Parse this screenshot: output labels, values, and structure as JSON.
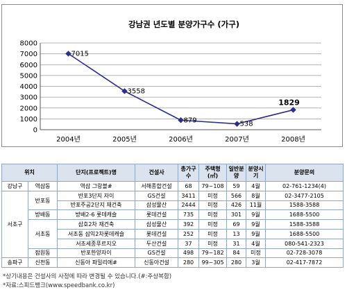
{
  "chart_data": {
    "type": "line",
    "title": "강남권 년도별 분양가구수 (가구)",
    "categories": [
      "2004년",
      "2005년",
      "2006년",
      "2007년",
      "2008년"
    ],
    "series": [
      {
        "values": [
          7015,
          3558,
          879,
          538,
          1829
        ],
        "data_labels": [
          "7015",
          "3558",
          "879",
          "538",
          "1829"
        ]
      }
    ],
    "yticks": [
      "0",
      "1000",
      "2000",
      "3000",
      "4000",
      "5000",
      "6000",
      "7000",
      "8000"
    ],
    "ylim": [
      0,
      8000
    ],
    "grid": true,
    "colors": {
      "line": "#2a2f8f",
      "marker": "#2a2f8f",
      "last_label": "#000000"
    }
  },
  "table": {
    "headers": [
      "위치",
      "",
      "단지(프로젝트)명",
      "건설사",
      "총가구수",
      "주택형(㎡)",
      "일반분양",
      "분양시기",
      "분양문의"
    ],
    "rows": [
      [
        "강남구",
        "역삼동",
        "역삼 그랑블#",
        "서해종합건설",
        "68",
        "79~108",
        "59",
        "4월",
        "02-761-1234(4)"
      ],
      [
        "서초구",
        "반포동",
        "반포3단지 자이",
        "GS건설",
        "3411",
        "미정",
        "566",
        "8월",
        "02-3477-2105"
      ],
      [
        "",
        "",
        "반포주공2단지 재건축",
        "삼성물산",
        "2444",
        "미정",
        "426",
        "11월",
        "1588-3588"
      ],
      [
        "",
        "방배동",
        "방배2-6 롯데캐슬",
        "롯데건설",
        "735",
        "미정",
        "301",
        "9월",
        "1688-5500"
      ],
      [
        "",
        "서초동",
        "삼호2차 재건축",
        "삼성물산",
        "392",
        "미정",
        "69",
        "9월",
        "1588-3588"
      ],
      [
        "",
        "",
        "서초동 삼익2차롯데캐슬",
        "롯데건설",
        "252",
        "미정",
        "13",
        "9월",
        "1688-5500"
      ],
      [
        "",
        "",
        "서초세종푸르지오",
        "두산건설",
        "37",
        "미정",
        "31",
        "4월",
        "080-541-2323"
      ],
      [
        "",
        "잠원동",
        "반포한양자이",
        "GS건설",
        "498",
        "79~182",
        "84",
        "미정",
        "02-728-3078"
      ],
      [
        "송파구",
        "신천동",
        "신동아 파밀리에#",
        "신동아건설",
        "280",
        "99~305",
        "280",
        "3월",
        "02-417-7872"
      ]
    ]
  },
  "notes": {
    "note1": "*상기내용은 건설사의 사정에 따라 변경될 수 있습니다.(#:주상복합)",
    "note2": "*자료:스피드뱅크(www.speedbank.co.kr)"
  }
}
